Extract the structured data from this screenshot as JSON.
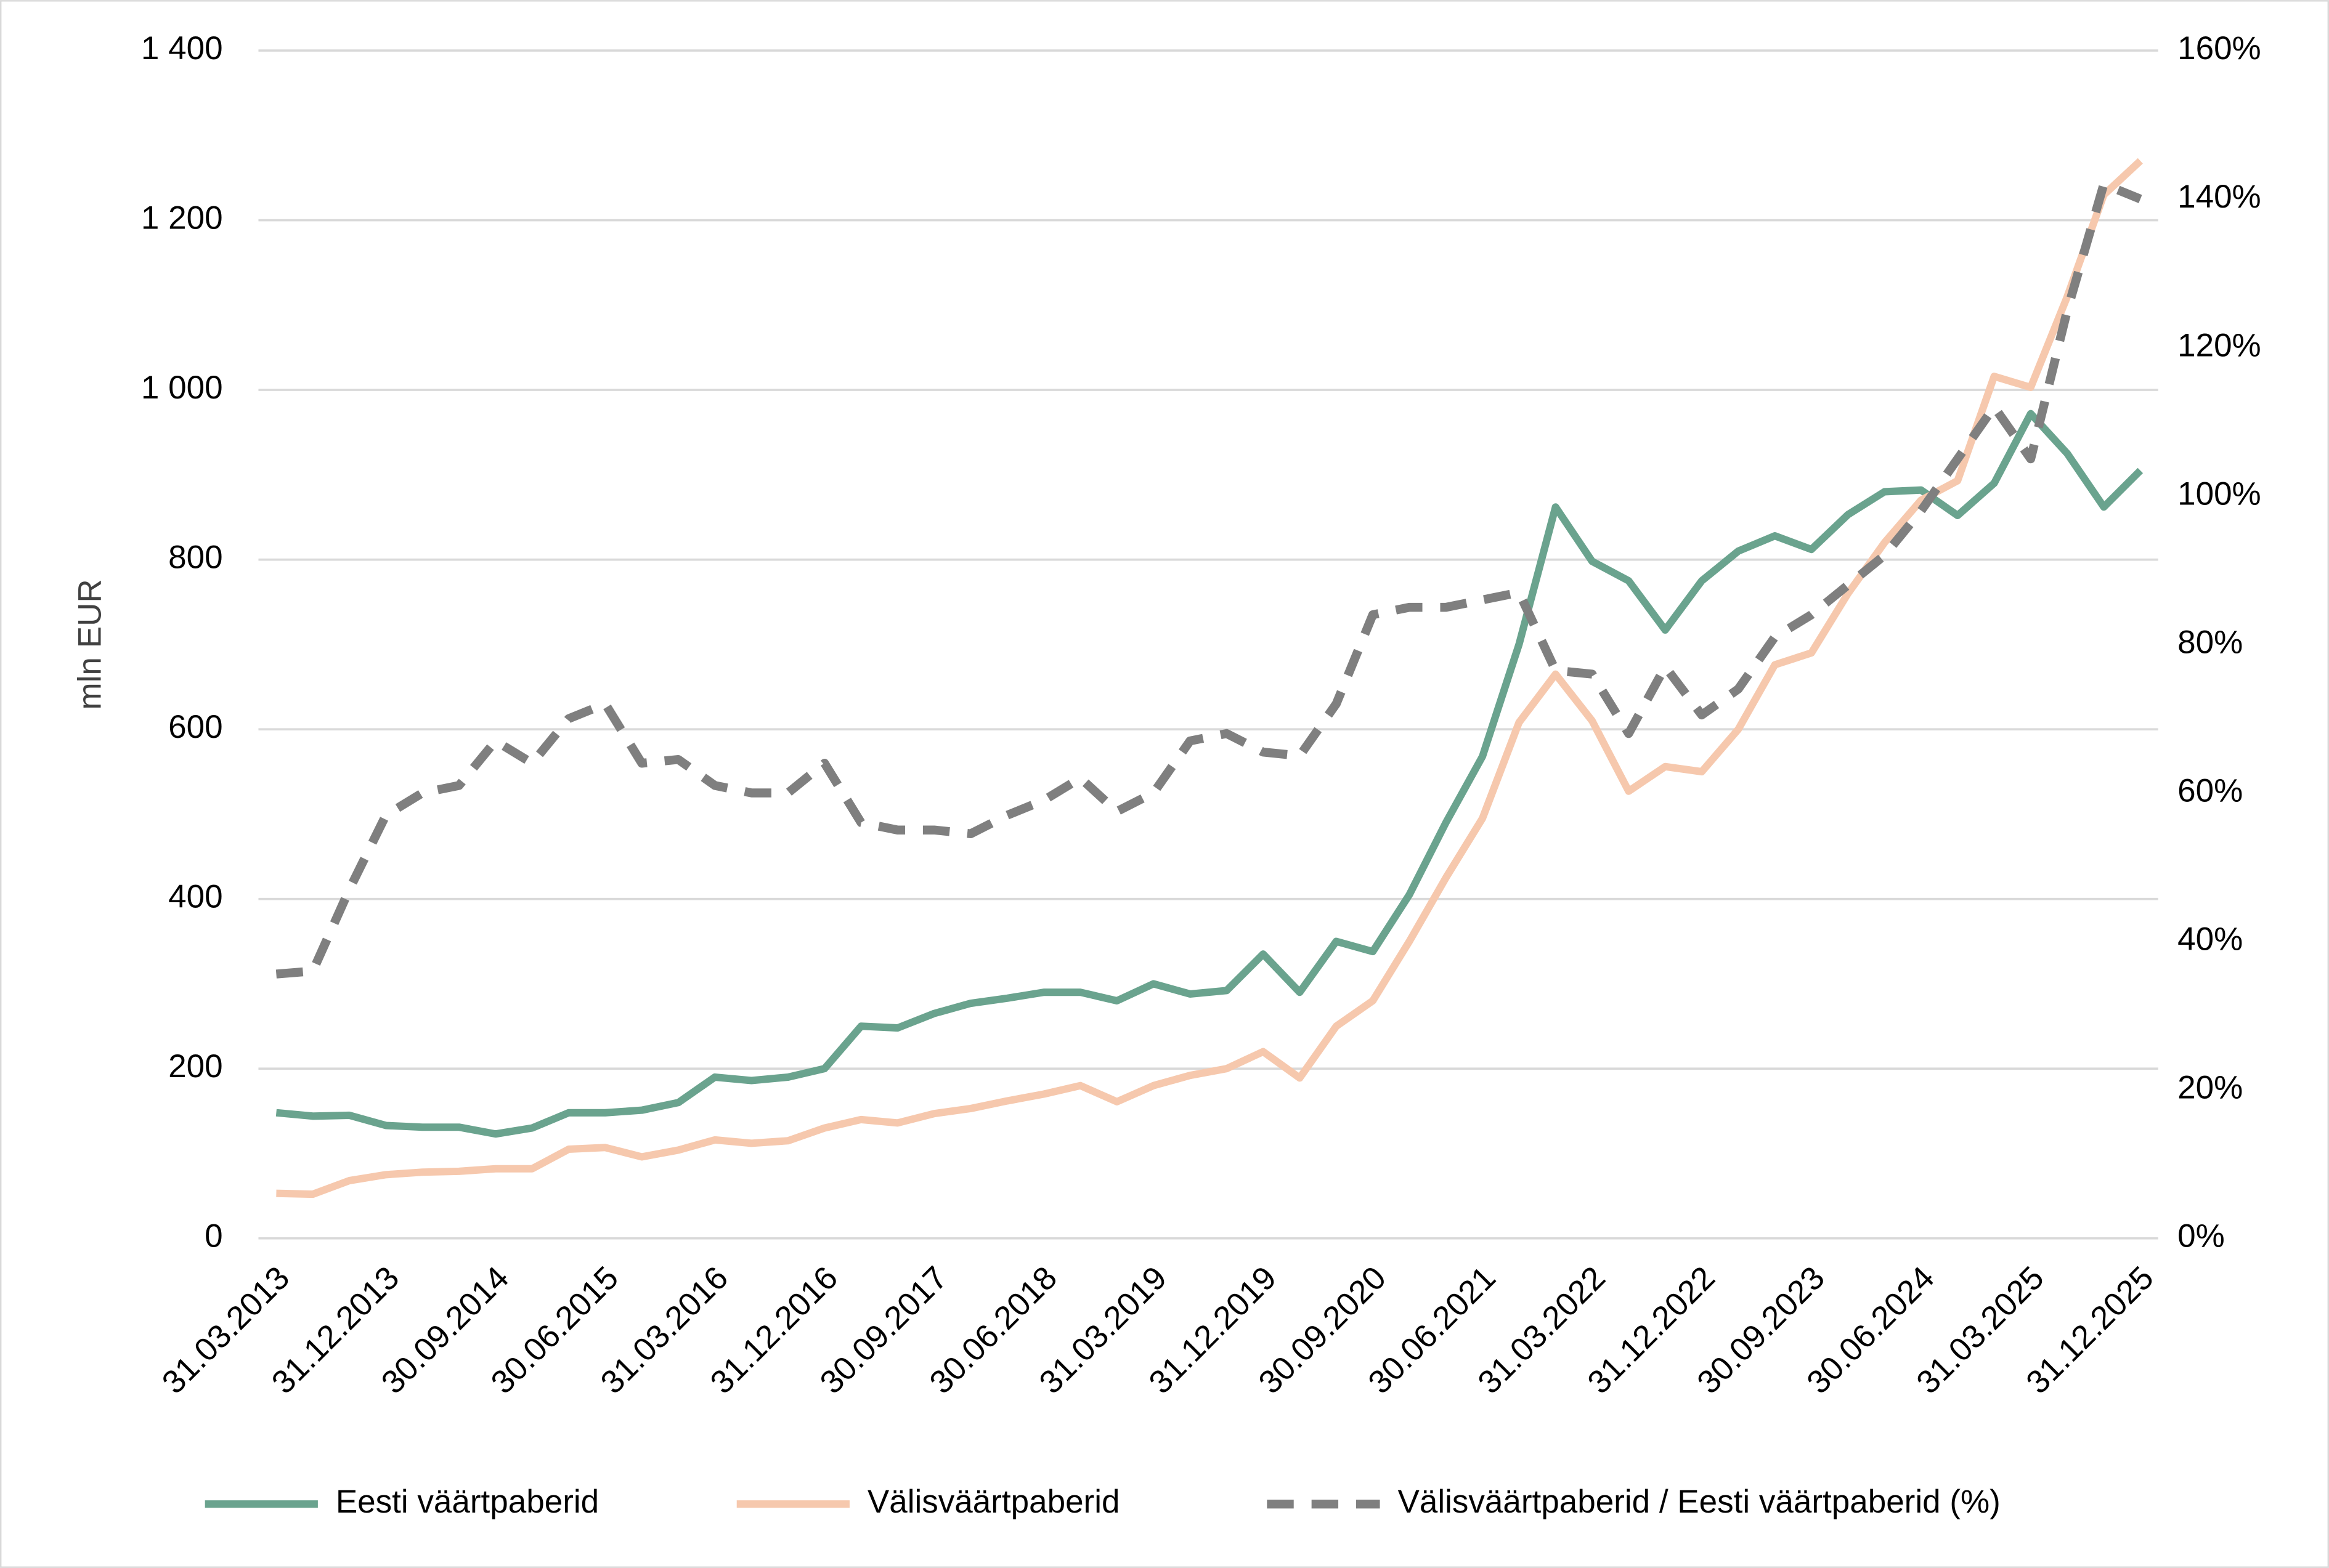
{
  "chart_data": {
    "type": "line",
    "ylabel": "mln EUR",
    "categories": [
      "31.03.2013",
      null,
      null,
      "31.12.2013",
      null,
      null,
      "30.09.2014",
      null,
      null,
      "30.06.2015",
      null,
      null,
      "31.03.2016",
      null,
      null,
      "31.12.2016",
      null,
      null,
      "30.09.2017",
      null,
      null,
      "30.06.2018",
      null,
      null,
      "31.03.2019",
      null,
      null,
      "31.12.2019",
      null,
      null,
      "30.09.2020",
      null,
      null,
      "30.06.2021",
      null,
      null,
      "31.03.2022",
      null,
      null,
      "31.12.2022",
      null,
      null,
      "30.09.2023",
      null,
      null,
      "30.06.2024",
      null,
      null,
      "31.03.2025",
      null,
      null,
      "31.12.2025"
    ],
    "series": [
      {
        "name": "Eesti väärtpaberid",
        "color": "#6aa38e",
        "values": [
          148,
          144,
          145,
          133,
          131,
          131,
          123,
          130,
          148,
          148,
          151,
          160,
          190,
          186,
          190,
          200,
          250,
          248,
          265,
          277,
          283,
          290,
          290,
          280,
          300,
          288,
          292,
          335,
          290,
          350,
          338,
          405,
          490,
          568,
          700,
          862,
          798,
          775,
          717,
          775,
          810,
          828,
          812,
          853,
          880,
          882,
          852,
          890,
          972,
          925,
          862,
          905
        ]
      },
      {
        "name": "Välisväärtpaberid",
        "color": "#f6c8ad",
        "values": [
          53,
          52,
          68,
          75,
          78,
          79,
          82,
          82,
          105,
          107,
          96,
          104,
          116,
          112,
          115,
          130,
          140,
          136,
          147,
          153,
          162,
          170,
          180,
          161,
          180,
          192,
          200,
          220,
          189,
          250,
          280,
          350,
          425,
          495,
          608,
          665,
          610,
          527,
          556,
          550,
          600,
          676,
          690,
          760,
          820,
          870,
          893,
          1016,
          1003,
          1110,
          1230,
          1270
        ]
      },
      {
        "name": "Välisväärtpaberid / Eesti väärtpaberid (%)",
        "color": "#7f7f7f",
        "dashed": true,
        "axis": "y2",
        "values": [
          35.6,
          36,
          47,
          57,
          60,
          61,
          67,
          64,
          70,
          72,
          64,
          64.5,
          61,
          60,
          60,
          64,
          56,
          55,
          55,
          54.5,
          57,
          59,
          62,
          57.5,
          60,
          67,
          68,
          65.5,
          65,
          72,
          84,
          85,
          85,
          86,
          87,
          76.5,
          76,
          68,
          77,
          70.5,
          74,
          81,
          84,
          88,
          92,
          98,
          105,
          112,
          105,
          125,
          142,
          140
        ]
      }
    ],
    "ylim": [
      0,
      1400
    ],
    "yticks": [
      0,
      200,
      400,
      600,
      800,
      {
        "value": 1000,
        "label": "1 000"
      },
      {
        "value": 1200,
        "label": "1 200"
      },
      {
        "value": 1400,
        "label": "1 400"
      }
    ],
    "y2lim": [
      0,
      160
    ],
    "y2ticks": [
      {
        "value": 0,
        "label": "0%"
      },
      {
        "value": 20,
        "label": "20%"
      },
      {
        "value": 40,
        "label": "40%"
      },
      {
        "value": 60,
        "label": "60%"
      },
      {
        "value": 80,
        "label": "80%"
      },
      {
        "value": 100,
        "label": "100%"
      },
      {
        "value": 120,
        "label": "120%"
      },
      {
        "value": 140,
        "label": "140%"
      },
      {
        "value": 160,
        "label": "160%"
      }
    ],
    "grid": true,
    "legend": "bottom"
  }
}
